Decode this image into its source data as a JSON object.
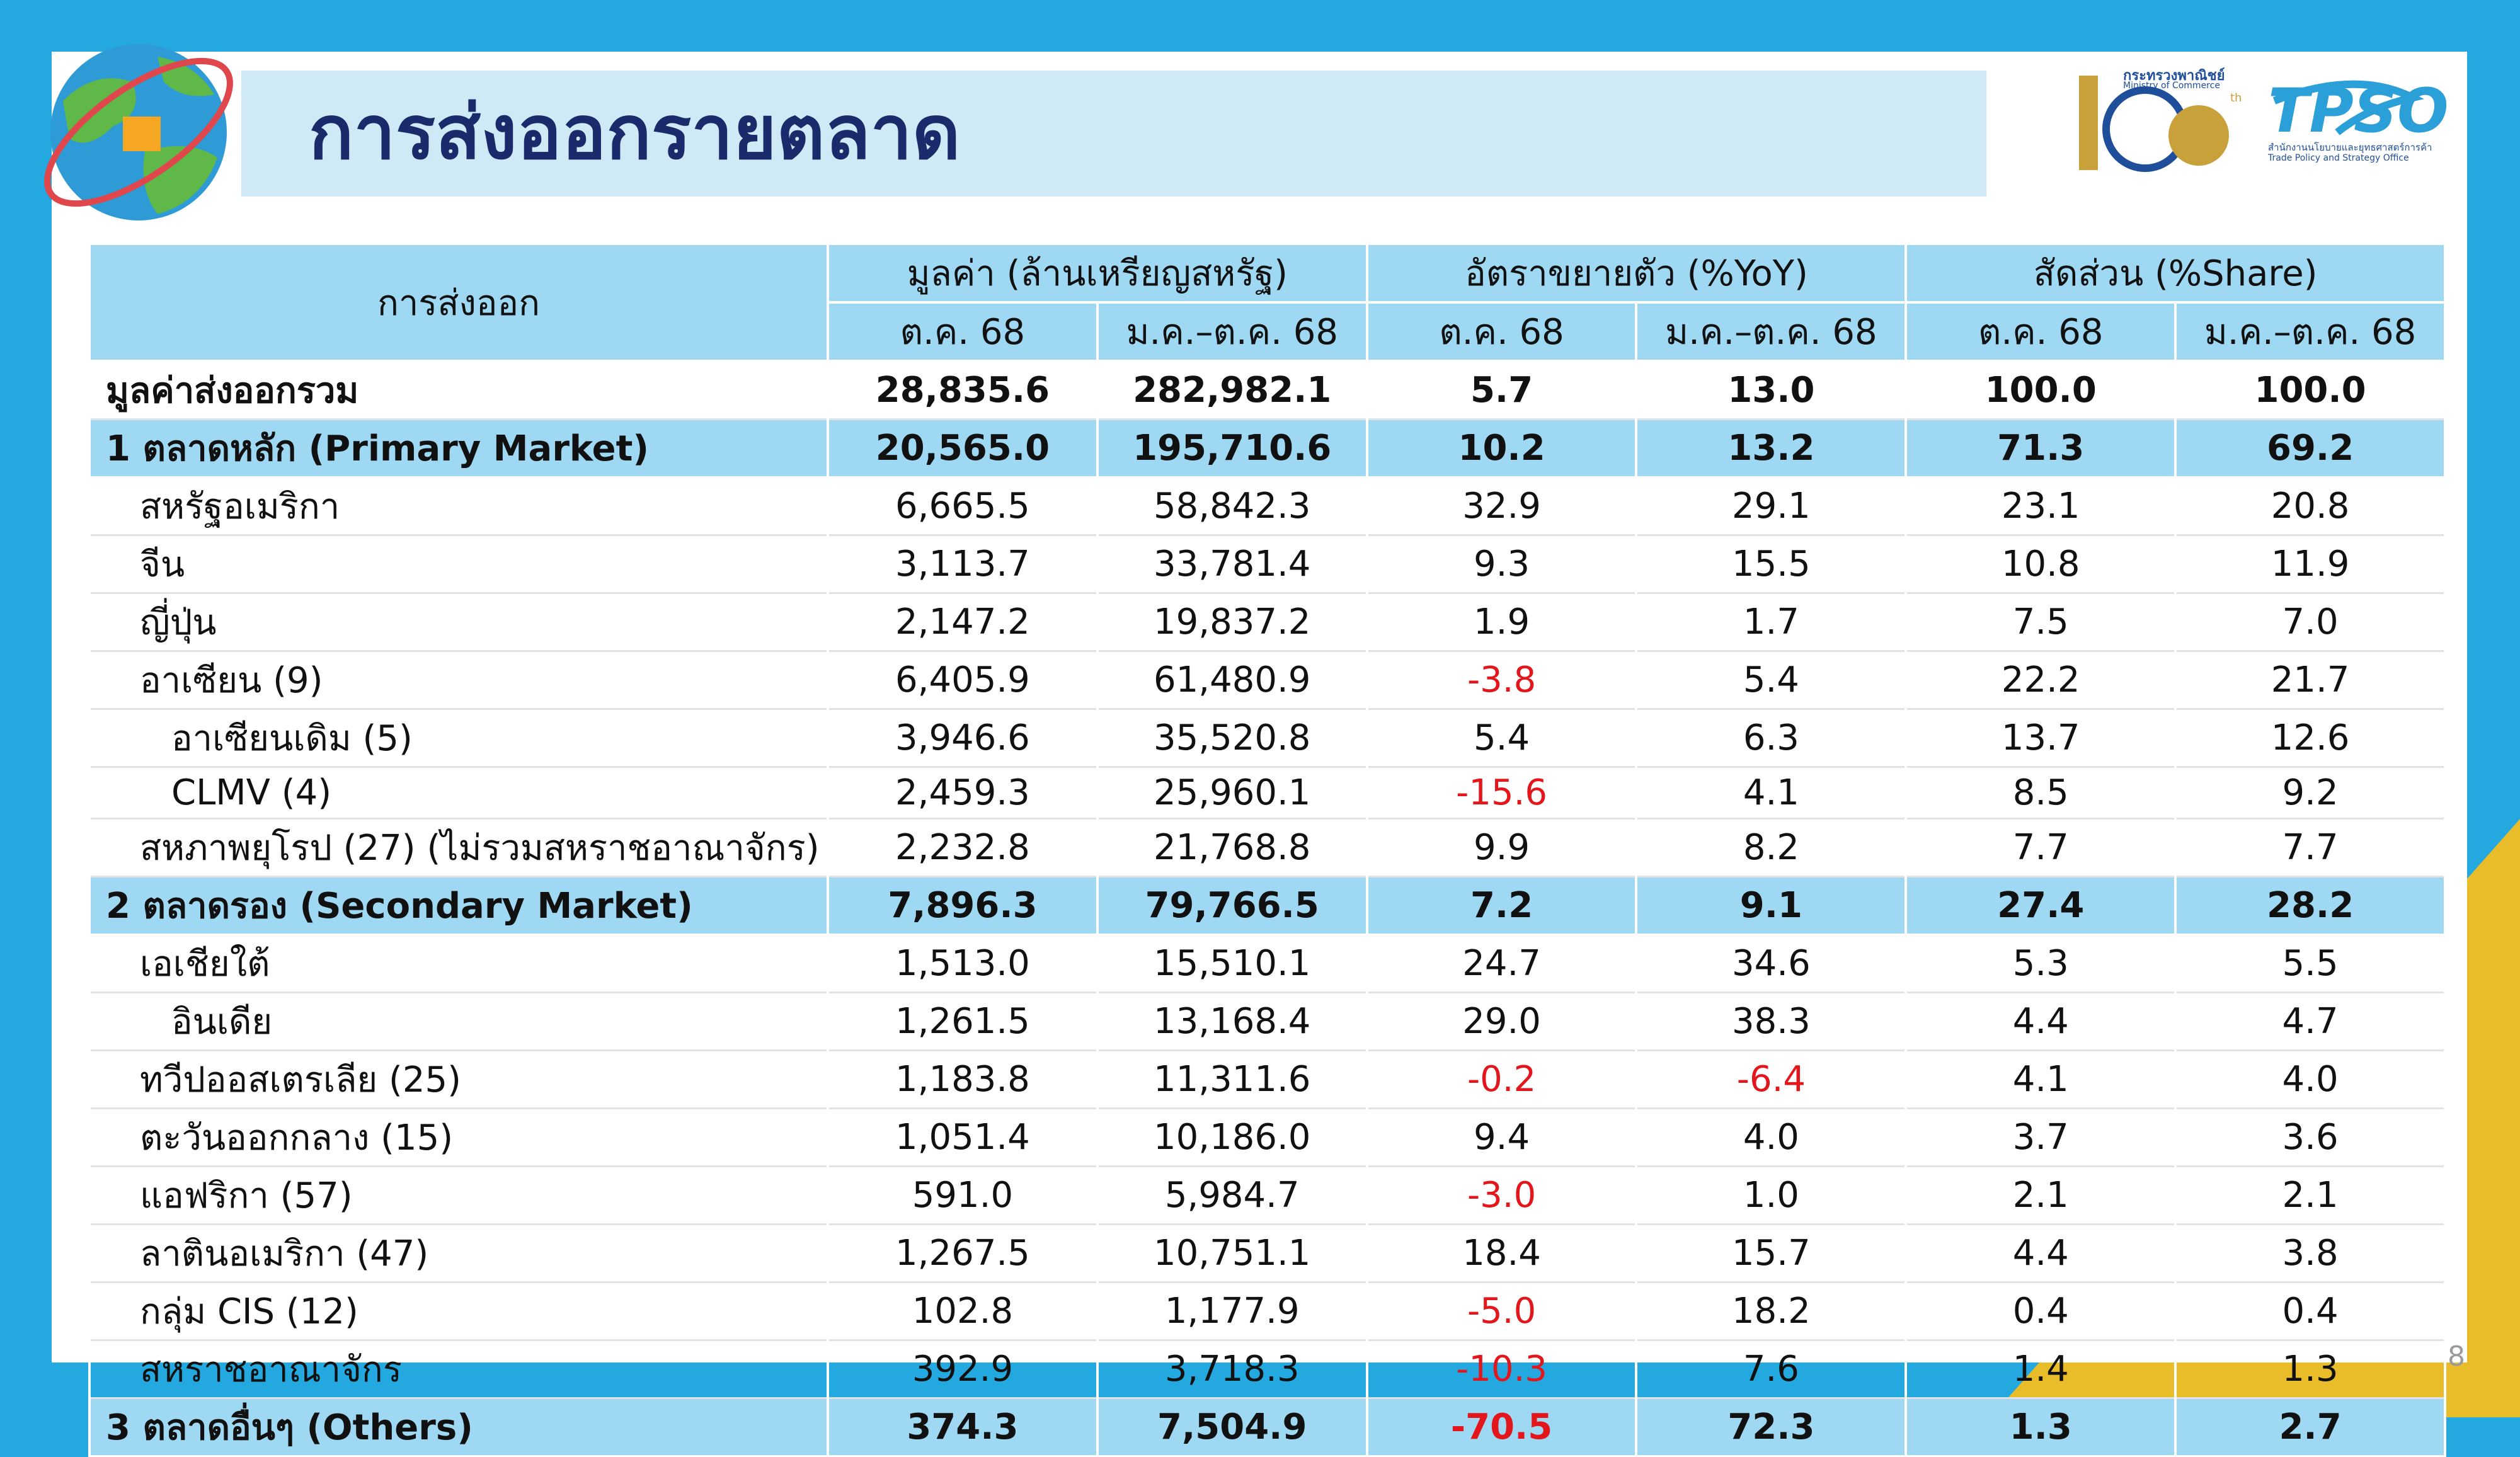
{
  "header": {
    "title": "การส่งออกรายตลาด",
    "ministry_th": "กระทรวงพาณิชย์",
    "ministry_en": "Ministry of Commerce",
    "anniversary": "105",
    "anniversary_suffix": "th",
    "tpso": "TPSO",
    "tpso_th": "สำนักงานนโยบายและยุทธศาสตร์การค้า",
    "tpso_en": "Trade Policy and Strategy Office"
  },
  "table": {
    "corner": "การส่งออก",
    "groups": [
      "มูลค่า (ล้านเหรียญสหรัฐ)",
      "อัตราขยายตัว (%YoY)",
      "สัดส่วน (%Share)"
    ],
    "periods": [
      "ต.ค. 68",
      "ม.ค.–ต.ค. 68",
      "ต.ค. 68",
      "ม.ค.–ต.ค. 68",
      "ต.ค. 68",
      "ม.ค.–ต.ค. 68"
    ],
    "rows": [
      [
        "มูลค่าส่งออกรวม",
        "28,835.6",
        "282,982.1",
        "5.7",
        "13.0",
        "100.0",
        "100.0"
      ],
      [
        "1 ตลาดหลัก (Primary Market)",
        "20,565.0",
        "195,710.6",
        "10.2",
        "13.2",
        "71.3",
        "69.2"
      ],
      [
        "สหรัฐอเมริกา",
        "6,665.5",
        "58,842.3",
        "32.9",
        "29.1",
        "23.1",
        "20.8"
      ],
      [
        "จีน",
        "3,113.7",
        "33,781.4",
        "9.3",
        "15.5",
        "10.8",
        "11.9"
      ],
      [
        "ญี่ปุ่น",
        "2,147.2",
        "19,837.2",
        "1.9",
        "1.7",
        "7.5",
        "7.0"
      ],
      [
        "อาเซียน (9)",
        "6,405.9",
        "61,480.9",
        "-3.8",
        "5.4",
        "22.2",
        "21.7"
      ],
      [
        "อาเซียนเดิม (5)",
        "3,946.6",
        "35,520.8",
        "5.4",
        "6.3",
        "13.7",
        "12.6"
      ],
      [
        "CLMV (4)",
        "2,459.3",
        "25,960.1",
        "-15.6",
        "4.1",
        "8.5",
        "9.2"
      ],
      [
        "สหภาพยุโรป (27) (ไม่รวมสหราชอาณาจักร)",
        "2,232.8",
        "21,768.8",
        "9.9",
        "8.2",
        "7.7",
        "7.7"
      ],
      [
        "2 ตลาดรอง (Secondary Market)",
        "7,896.3",
        "79,766.5",
        "7.2",
        "9.1",
        "27.4",
        "28.2"
      ],
      [
        "เอเชียใต้",
        "1,513.0",
        "15,510.1",
        "24.7",
        "34.6",
        "5.3",
        "5.5"
      ],
      [
        "อินเดีย",
        "1,261.5",
        "13,168.4",
        "29.0",
        "38.3",
        "4.4",
        "4.7"
      ],
      [
        "ทวีปออสเตรเลีย (25)",
        "1,183.8",
        "11,311.6",
        "-0.2",
        "-6.4",
        "4.1",
        "4.0"
      ],
      [
        "ตะวันออกกลาง (15)",
        "1,051.4",
        "10,186.0",
        "9.4",
        "4.0",
        "3.7",
        "3.6"
      ],
      [
        "แอฟริกา (57)",
        "591.0",
        "5,984.7",
        "-3.0",
        "1.0",
        "2.1",
        "2.1"
      ],
      [
        "ลาตินอเมริกา (47)",
        "1,267.5",
        "10,751.1",
        "18.4",
        "15.7",
        "4.4",
        "3.8"
      ],
      [
        "กลุ่ม CIS (12)",
        "102.8",
        "1,177.9",
        "-5.0",
        "18.2",
        "0.4",
        "0.4"
      ],
      [
        "สหราชอาณาจักร",
        "392.9",
        "3,718.3",
        "-10.3",
        "7.6",
        "1.4",
        "1.3"
      ],
      [
        "3 ตลาดอื่นๆ (Others)",
        "374.3",
        "7,504.9",
        "-70.5",
        "72.3",
        "1.3",
        "2.7"
      ]
    ]
  },
  "page_number": "8"
}
